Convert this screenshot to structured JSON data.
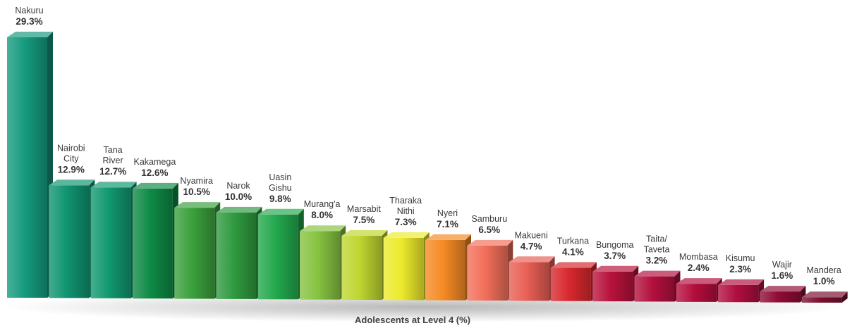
{
  "chart_data": {
    "type": "bar",
    "xlabel": "Adolescents at Level 4 (%)",
    "ylabel": "",
    "title": "",
    "ylim": [
      0,
      30
    ],
    "grid": false,
    "categories": [
      [
        "Nakuru"
      ],
      [
        "Nairobi",
        "City"
      ],
      [
        "Tana",
        "River"
      ],
      [
        "Kakamega"
      ],
      [
        "Nyamira"
      ],
      [
        "Narok"
      ],
      [
        "Uasin",
        "Gishu"
      ],
      [
        "Murang'a"
      ],
      [
        "Marsabit"
      ],
      [
        "Tharaka",
        "Nithi"
      ],
      [
        "Nyeri"
      ],
      [
        "Samburu"
      ],
      [
        "Makueni"
      ],
      [
        "Turkana"
      ],
      [
        "Bungoma"
      ],
      [
        "Taita/",
        "Taveta"
      ],
      [
        "Mombasa"
      ],
      [
        "Kisumu"
      ],
      [
        "Wajir"
      ],
      [
        "Mandera"
      ]
    ],
    "values": [
      29.3,
      12.9,
      12.7,
      12.6,
      10.5,
      10.0,
      9.8,
      8.0,
      7.5,
      7.3,
      7.1,
      6.5,
      4.7,
      4.1,
      3.7,
      3.2,
      2.4,
      2.3,
      1.6,
      1.0
    ],
    "value_labels": [
      "29.3%",
      "12.9%",
      "12.7%",
      "12.6%",
      "10.5%",
      "10.0%",
      "9.8%",
      "8.0%",
      "7.5%",
      "7.3%",
      "7.1%",
      "6.5%",
      "4.7%",
      "4.1%",
      "3.7%",
      "3.2%",
      "2.4%",
      "2.3%",
      "1.6%",
      "1.0%"
    ],
    "colors": [
      "#159a7e",
      "#0f9470",
      "#11986f",
      "#0e8a45",
      "#3aa03c",
      "#2f9a40",
      "#22a84c",
      "#86c340",
      "#bfd630",
      "#ecea2c",
      "#f58a24",
      "#f26f5a",
      "#e85f55",
      "#d8282e",
      "#b8123c",
      "#b3103e",
      "#b40d3d",
      "#b10e40",
      "#8f0c36",
      "#7a1030"
    ]
  }
}
